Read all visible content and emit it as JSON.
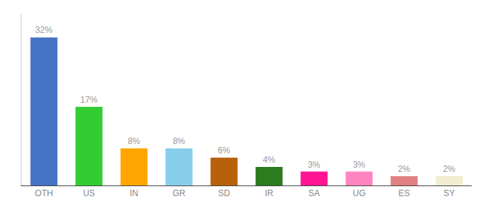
{
  "chart_data": {
    "type": "bar",
    "categories": [
      "OTH",
      "US",
      "IN",
      "GR",
      "SD",
      "IR",
      "SA",
      "UG",
      "ES",
      "SY"
    ],
    "values": [
      32,
      17,
      8,
      8,
      6,
      4,
      3,
      3,
      2,
      2
    ],
    "value_labels": [
      "32%",
      "17%",
      "8%",
      "8%",
      "6%",
      "4%",
      "3%",
      "3%",
      "2%",
      "2%"
    ],
    "colors": [
      "#4472C4",
      "#33CC33",
      "#FFA500",
      "#87CEEB",
      "#B8600A",
      "#2D7A1F",
      "#FF1493",
      "#FF85C0",
      "#E08080",
      "#F0EDD0"
    ],
    "ylim": [
      0,
      37
    ],
    "data_labels": true,
    "tick_labels": "x",
    "grid": false
  }
}
